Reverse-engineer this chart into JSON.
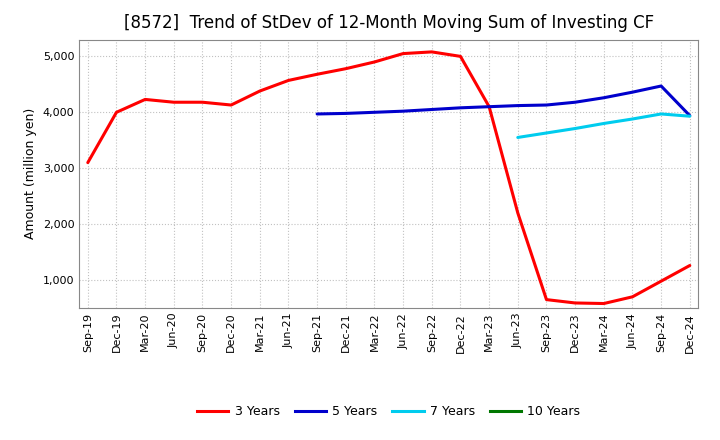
{
  "title": "[8572]  Trend of StDev of 12-Month Moving Sum of Investing CF",
  "ylabel": "Amount (million yen)",
  "background_color": "#ffffff",
  "grid_color": "#bbbbbb",
  "ylim": [
    500,
    5300
  ],
  "yticks": [
    1000,
    2000,
    3000,
    4000,
    5000
  ],
  "x_labels": [
    "Sep-19",
    "Dec-19",
    "Mar-20",
    "Jun-20",
    "Sep-20",
    "Dec-20",
    "Mar-21",
    "Jun-21",
    "Sep-21",
    "Dec-21",
    "Mar-22",
    "Jun-22",
    "Sep-22",
    "Dec-22",
    "Mar-23",
    "Jun-23",
    "Sep-23",
    "Dec-23",
    "Mar-24",
    "Jun-24",
    "Sep-24",
    "Dec-24"
  ],
  "series_3y": {
    "color": "#ff0000",
    "label": "3 Years",
    "x": [
      0,
      1,
      2,
      3,
      4,
      5,
      6,
      7,
      8,
      9,
      10,
      11,
      12,
      13,
      14,
      15,
      16,
      17,
      18,
      19,
      20,
      21
    ],
    "y": [
      3100,
      4000,
      4230,
      4180,
      4180,
      4130,
      4380,
      4570,
      4680,
      4780,
      4900,
      5050,
      5080,
      5000,
      4100,
      2200,
      650,
      590,
      580,
      700,
      980,
      1260
    ]
  },
  "series_5y": {
    "color": "#0000cc",
    "label": "5 Years",
    "x": [
      8,
      9,
      10,
      11,
      12,
      13,
      14,
      15,
      16,
      17,
      18,
      19,
      20,
      21
    ],
    "y": [
      3970,
      3980,
      4000,
      4020,
      4050,
      4080,
      4100,
      4120,
      4130,
      4180,
      4260,
      4360,
      4470,
      3940
    ]
  },
  "series_7y": {
    "color": "#00ccee",
    "label": "7 Years",
    "x": [
      15,
      16,
      17,
      18,
      19,
      20,
      21
    ],
    "y": [
      3550,
      3630,
      3710,
      3800,
      3880,
      3970,
      3930
    ]
  },
  "series_10y": {
    "color": "#007700",
    "label": "10 Years",
    "x": [],
    "y": []
  },
  "title_fontsize": 12,
  "axis_fontsize": 9,
  "tick_fontsize": 8,
  "line_width": 2.2,
  "legend_fontsize": 9
}
